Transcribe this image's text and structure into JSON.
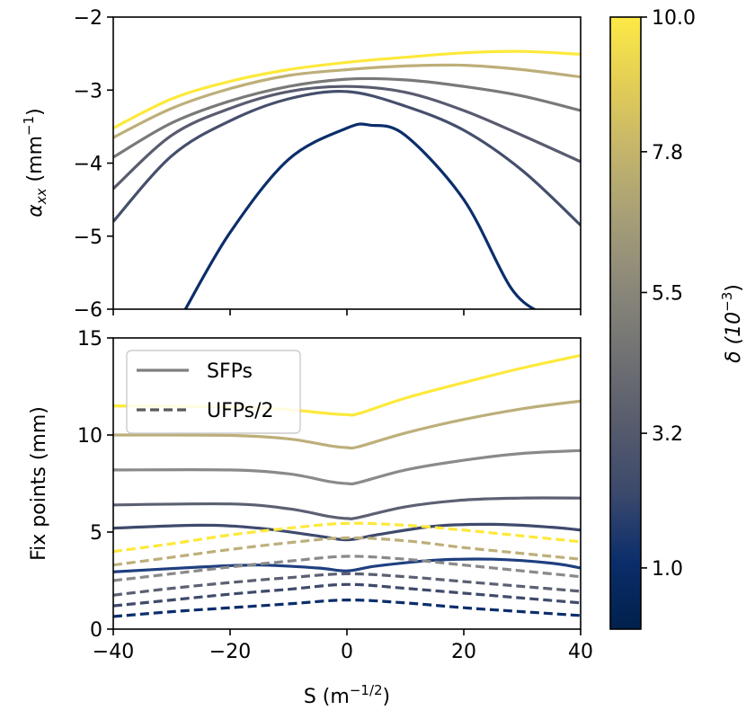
{
  "chart_data": [
    {
      "id": "top",
      "type": "line",
      "ylabel_main": "α",
      "ylabel_sub": "xx",
      "ylabel_units": " (mm",
      "ylabel_sup": "−1",
      "ylabel_close": ")",
      "xlim": [
        -40,
        40
      ],
      "ylim": [
        -6,
        -2
      ],
      "xticks": [
        -40,
        -20,
        0,
        20,
        40
      ],
      "yticks": [
        -6,
        -5,
        -4,
        -3,
        -2
      ],
      "ytick_labels": [
        "−6",
        "−5",
        "−4",
        "−3",
        "−2"
      ],
      "series": [
        {
          "name": "delta 0.5",
          "color": "#0b2e6b",
          "points": [
            [
              -28,
              -6.05
            ],
            [
              -20,
              -4.95
            ],
            [
              -10,
              -3.95
            ],
            [
              0,
              -3.52
            ],
            [
              4,
              -3.48
            ],
            [
              10,
              -3.62
            ],
            [
              20,
              -4.5
            ],
            [
              28,
              -5.7
            ],
            [
              33,
              -6.05
            ]
          ]
        },
        {
          "name": "delta 2",
          "color": "#454f6c",
          "points": [
            [
              -40,
              -4.8
            ],
            [
              -30,
              -3.9
            ],
            [
              -20,
              -3.42
            ],
            [
              -10,
              -3.12
            ],
            [
              0,
              -3.02
            ],
            [
              10,
              -3.22
            ],
            [
              20,
              -3.55
            ],
            [
              30,
              -4.1
            ],
            [
              40,
              -4.85
            ]
          ]
        },
        {
          "name": "delta 4",
          "color": "#595b70",
          "points": [
            [
              -40,
              -4.35
            ],
            [
              -30,
              -3.62
            ],
            [
              -20,
              -3.25
            ],
            [
              -10,
              -3.02
            ],
            [
              0,
              -2.95
            ],
            [
              10,
              -3.03
            ],
            [
              20,
              -3.28
            ],
            [
              30,
              -3.62
            ],
            [
              40,
              -3.98
            ]
          ]
        },
        {
          "name": "delta 6",
          "color": "#797977",
          "points": [
            [
              -40,
              -3.92
            ],
            [
              -30,
              -3.45
            ],
            [
              -20,
              -3.15
            ],
            [
              -10,
              -2.95
            ],
            [
              0,
              -2.85
            ],
            [
              10,
              -2.86
            ],
            [
              20,
              -2.95
            ],
            [
              30,
              -3.08
            ],
            [
              40,
              -3.28
            ]
          ]
        },
        {
          "name": "delta 8",
          "color": "#bdaf7a",
          "points": [
            [
              -40,
              -3.65
            ],
            [
              -30,
              -3.25
            ],
            [
              -20,
              -2.98
            ],
            [
              -10,
              -2.8
            ],
            [
              0,
              -2.72
            ],
            [
              10,
              -2.67
            ],
            [
              20,
              -2.66
            ],
            [
              30,
              -2.72
            ],
            [
              40,
              -2.82
            ]
          ]
        },
        {
          "name": "delta 10",
          "color": "#fde93a",
          "points": [
            [
              -40,
              -3.52
            ],
            [
              -30,
              -3.12
            ],
            [
              -20,
              -2.88
            ],
            [
              -10,
              -2.72
            ],
            [
              0,
              -2.62
            ],
            [
              10,
              -2.55
            ],
            [
              20,
              -2.49
            ],
            [
              30,
              -2.47
            ],
            [
              40,
              -2.51
            ]
          ]
        }
      ]
    },
    {
      "id": "bottom",
      "type": "line",
      "ylabel": "Fix points (mm)",
      "xlabel_main": "S (m",
      "xlabel_sup": "−1/2",
      "xlabel_close": ")",
      "xlim": [
        -40,
        40
      ],
      "ylim": [
        0,
        15
      ],
      "xticks": [
        -40,
        -20,
        0,
        20,
        40
      ],
      "xtick_labels": [
        "−40",
        "−20",
        "0",
        "20",
        "40"
      ],
      "yticks": [
        0,
        5,
        10,
        15
      ],
      "ytick_labels": [
        "0",
        "5",
        "10",
        "15"
      ],
      "legend": {
        "location": "upper-left",
        "entries": [
          {
            "label": "SFPs",
            "style": "solid",
            "color": "#7f7f7f"
          },
          {
            "label": "UFPs/2",
            "style": "dashed",
            "color": "#595959"
          }
        ]
      },
      "series": [
        {
          "name": "SFP delta 10",
          "style": "solid",
          "color": "#fde93a",
          "points": [
            [
              -40,
              11.5
            ],
            [
              -20,
              11.45
            ],
            [
              -10,
              11.3
            ],
            [
              -3,
              11.1
            ],
            [
              0,
              11.05
            ],
            [
              2,
              11.1
            ],
            [
              10,
              11.9
            ],
            [
              20,
              12.7
            ],
            [
              30,
              13.45
            ],
            [
              40,
              14.1
            ]
          ]
        },
        {
          "name": "SFP delta 8",
          "style": "solid",
          "color": "#bdaf7a",
          "points": [
            [
              -40,
              10.0
            ],
            [
              -20,
              9.98
            ],
            [
              -10,
              9.8
            ],
            [
              -3,
              9.45
            ],
            [
              0,
              9.35
            ],
            [
              2,
              9.4
            ],
            [
              10,
              10.1
            ],
            [
              20,
              10.8
            ],
            [
              30,
              11.35
            ],
            [
              40,
              11.75
            ]
          ]
        },
        {
          "name": "SFP delta 6",
          "style": "solid",
          "color": "#8a8a8a",
          "points": [
            [
              -40,
              8.2
            ],
            [
              -20,
              8.2
            ],
            [
              -10,
              8.0
            ],
            [
              -3,
              7.6
            ],
            [
              0,
              7.5
            ],
            [
              2,
              7.55
            ],
            [
              10,
              8.2
            ],
            [
              20,
              8.7
            ],
            [
              30,
              9.05
            ],
            [
              40,
              9.2
            ]
          ]
        },
        {
          "name": "SFP delta 4",
          "style": "solid",
          "color": "#5c6073",
          "points": [
            [
              -40,
              6.4
            ],
            [
              -20,
              6.45
            ],
            [
              -10,
              6.2
            ],
            [
              -3,
              5.8
            ],
            [
              0,
              5.7
            ],
            [
              2,
              5.75
            ],
            [
              10,
              6.3
            ],
            [
              20,
              6.65
            ],
            [
              30,
              6.75
            ],
            [
              40,
              6.75
            ]
          ]
        },
        {
          "name": "SFP delta 2",
          "style": "solid",
          "color": "#3f4a6c",
          "points": [
            [
              -40,
              5.2
            ],
            [
              -25,
              5.35
            ],
            [
              -15,
              5.2
            ],
            [
              -5,
              4.8
            ],
            [
              0,
              4.6
            ],
            [
              5,
              4.85
            ],
            [
              15,
              5.3
            ],
            [
              25,
              5.4
            ],
            [
              35,
              5.25
            ],
            [
              40,
              5.1
            ]
          ]
        },
        {
          "name": "SFP delta 1",
          "style": "solid",
          "color": "#1f3f80",
          "points": [
            [
              -40,
              2.95
            ],
            [
              -25,
              3.2
            ],
            [
              -15,
              3.3
            ],
            [
              -5,
              3.15
            ],
            [
              0,
              3.0
            ],
            [
              5,
              3.25
            ],
            [
              15,
              3.55
            ],
            [
              25,
              3.6
            ],
            [
              35,
              3.4
            ],
            [
              40,
              3.15
            ]
          ]
        },
        {
          "name": "UFP delta 10",
          "style": "dashed",
          "color": "#fde93a",
          "points": [
            [
              -40,
              4.0
            ],
            [
              -30,
              4.4
            ],
            [
              -20,
              4.85
            ],
            [
              -10,
              5.2
            ],
            [
              0,
              5.45
            ],
            [
              10,
              5.35
            ],
            [
              20,
              5.1
            ],
            [
              30,
              4.8
            ],
            [
              40,
              4.5
            ]
          ]
        },
        {
          "name": "UFP delta 8",
          "style": "dashed",
          "color": "#bdaf7a",
          "points": [
            [
              -40,
              3.3
            ],
            [
              -30,
              3.7
            ],
            [
              -20,
              4.1
            ],
            [
              -10,
              4.45
            ],
            [
              0,
              4.7
            ],
            [
              10,
              4.55
            ],
            [
              20,
              4.2
            ],
            [
              30,
              3.9
            ],
            [
              40,
              3.6
            ]
          ]
        },
        {
          "name": "UFP delta 6",
          "style": "dashed",
          "color": "#8a8a8a",
          "points": [
            [
              -40,
              2.5
            ],
            [
              -30,
              2.85
            ],
            [
              -20,
              3.2
            ],
            [
              -10,
              3.5
            ],
            [
              0,
              3.75
            ],
            [
              10,
              3.6
            ],
            [
              20,
              3.3
            ],
            [
              30,
              3.0
            ],
            [
              40,
              2.7
            ]
          ]
        },
        {
          "name": "UFP delta 4",
          "style": "dashed",
          "color": "#5c6073",
          "points": [
            [
              -40,
              1.75
            ],
            [
              -30,
              2.1
            ],
            [
              -20,
              2.4
            ],
            [
              -10,
              2.65
            ],
            [
              0,
              2.85
            ],
            [
              10,
              2.7
            ],
            [
              20,
              2.45
            ],
            [
              30,
              2.2
            ],
            [
              40,
              1.95
            ]
          ]
        },
        {
          "name": "UFP delta 2",
          "style": "dashed",
          "color": "#3f4a6c",
          "points": [
            [
              -40,
              1.2
            ],
            [
              -30,
              1.5
            ],
            [
              -20,
              1.8
            ],
            [
              -10,
              2.05
            ],
            [
              0,
              2.3
            ],
            [
              10,
              2.1
            ],
            [
              20,
              1.85
            ],
            [
              30,
              1.6
            ],
            [
              40,
              1.35
            ]
          ]
        },
        {
          "name": "UFP delta 1",
          "style": "dashed",
          "color": "#0b2e6b",
          "points": [
            [
              -40,
              0.65
            ],
            [
              -30,
              0.9
            ],
            [
              -20,
              1.1
            ],
            [
              -10,
              1.3
            ],
            [
              0,
              1.5
            ],
            [
              10,
              1.35
            ],
            [
              20,
              1.1
            ],
            [
              30,
              0.9
            ],
            [
              40,
              0.7
            ]
          ]
        }
      ]
    },
    {
      "id": "colorbar",
      "type": "colorbar",
      "label_main": "δ (10",
      "label_sup": "−3",
      "label_close": ")",
      "range": [
        0,
        10
      ],
      "ticks": [
        1.0,
        3.2,
        5.5,
        7.8,
        10.0
      ],
      "tick_labels": [
        "1.0",
        "3.2",
        "5.5",
        "7.8",
        "10.0"
      ],
      "colormap": "cividis",
      "stops": [
        "#00204c",
        "#0b2e6b",
        "#3b496c",
        "#575c6d",
        "#707173",
        "#8a8779",
        "#a59d77",
        "#c3b46c",
        "#e2cd56",
        "#fdea45"
      ]
    }
  ]
}
